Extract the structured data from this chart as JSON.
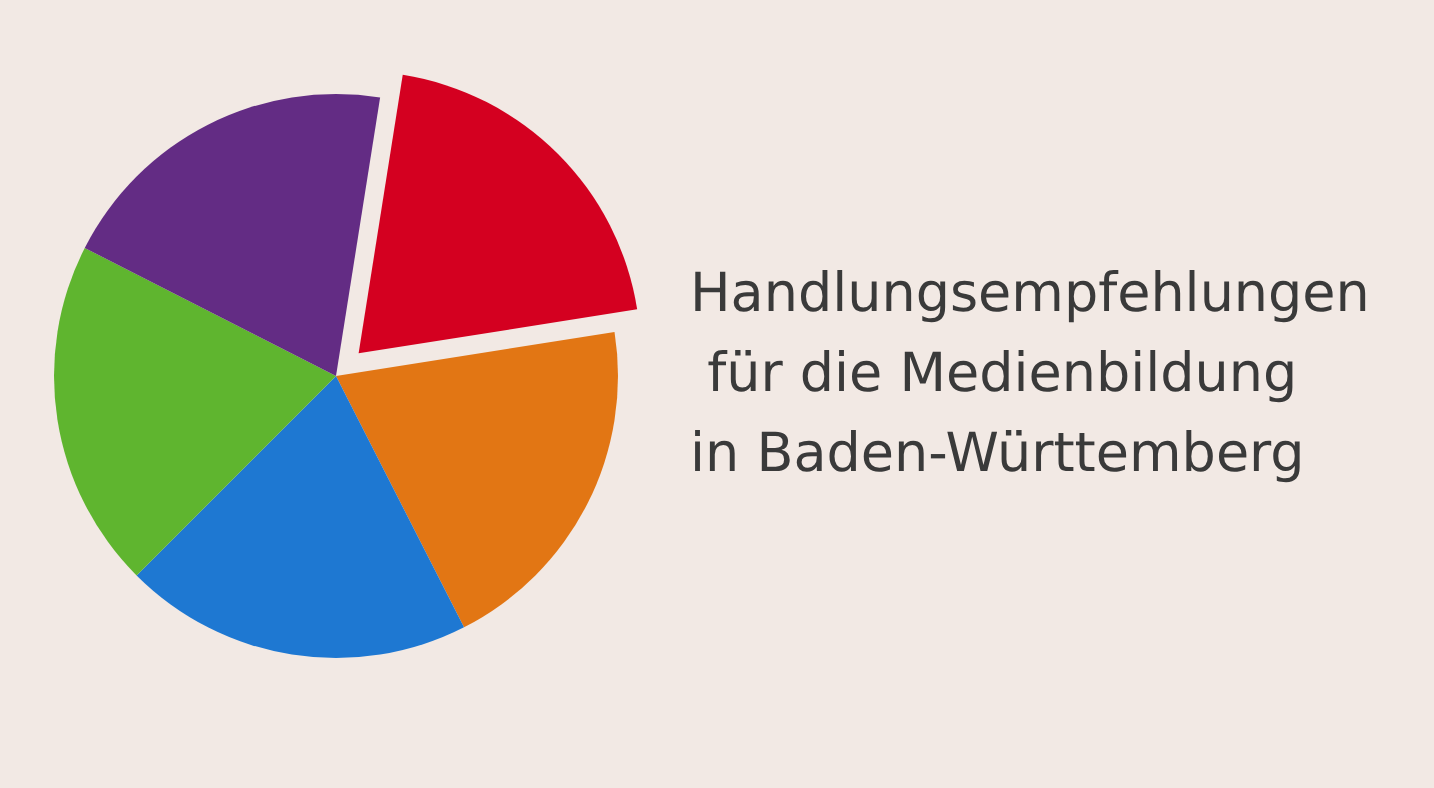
{
  "chart_data": {
    "type": "pie",
    "title": "Handlungsempfehlungen für die Medienbildung in Baden-Württemberg",
    "categories": [
      null,
      null,
      null,
      null,
      null
    ],
    "values": [
      20,
      20,
      20,
      20,
      20
    ],
    "colors": [
      "#d40020",
      "#e27614",
      "#1e78d2",
      "#5fb52f",
      "#632c84"
    ]
  }
}
